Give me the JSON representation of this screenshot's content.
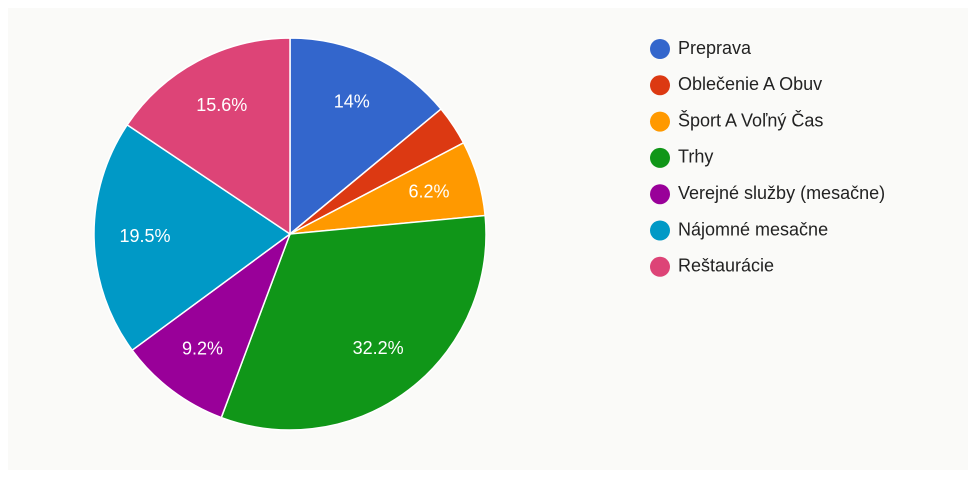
{
  "chart_data": {
    "type": "pie",
    "categories": [
      "Preprava",
      "Oblečenie A Obuv",
      "Šport A Voľný Čas",
      "Trhy",
      "Verejné služby (mesačne)",
      "Nájomné mesačne",
      "Reštaurácie"
    ],
    "values": [
      14,
      3.3,
      6.2,
      32.2,
      9.2,
      19.5,
      15.6
    ],
    "value_labels": [
      "14%",
      null,
      "6.2%",
      "32.2%",
      "9.2%",
      "19.5%",
      "15.6%"
    ],
    "colors": [
      "#3366cc",
      "#dc3912",
      "#ff9900",
      "#109618",
      "#990099",
      "#0099c6",
      "#dd4477"
    ],
    "legend": "right"
  }
}
